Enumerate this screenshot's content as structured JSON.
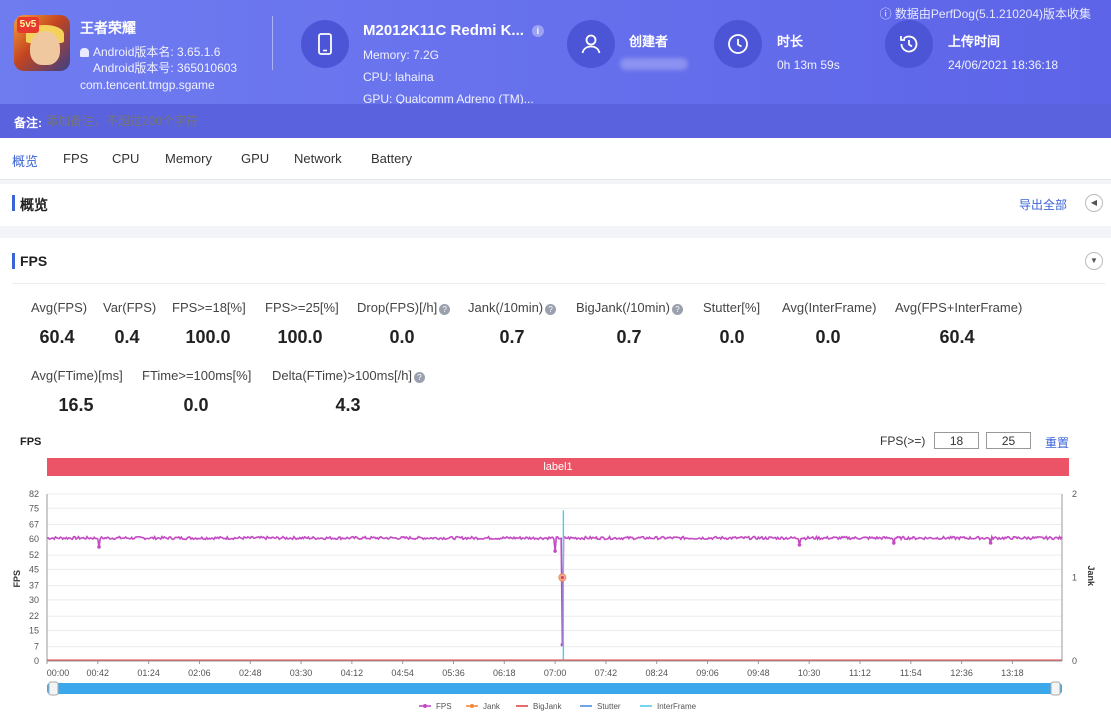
{
  "header": {
    "data_source_note": "数据由PerfDog(5.1.210204)版本收集",
    "app": {
      "name": "王者荣耀",
      "version_name": "Android版本名: 3.65.1.6",
      "version_code": "Android版本号: 365010603",
      "package": "com.tencent.tmgp.sgame",
      "icon_badge": "5v5"
    },
    "device": {
      "name": "M2012K11C Redmi K...",
      "memory": "Memory: 7.2G",
      "cpu": "CPU: lahaina",
      "gpu": "GPU: Qualcomm Adreno (TM)..."
    },
    "creator": {
      "label": "创建者"
    },
    "duration": {
      "label": "时长",
      "value": "0h 13m 59s"
    },
    "upload_time": {
      "label": "上传时间",
      "value": "24/06/2021 18:36:18"
    },
    "remark": {
      "label": "备注:",
      "placeholder": "添加备注，不超过200个字符"
    }
  },
  "tabs": [
    "概览",
    "FPS",
    "CPU",
    "Memory",
    "GPU",
    "Network",
    "Battery"
  ],
  "active_tab": 0,
  "overview": {
    "title": "概览",
    "export_label": "导出全部"
  },
  "fps_section": {
    "title": "FPS",
    "stats": [
      {
        "label": "Avg(FPS)",
        "value": "60.4",
        "help": false
      },
      {
        "label": "Var(FPS)",
        "value": "0.4",
        "help": false
      },
      {
        "label": "FPS>=18[%]",
        "value": "100.0",
        "help": false
      },
      {
        "label": "FPS>=25[%]",
        "value": "100.0",
        "help": false
      },
      {
        "label": "Drop(FPS)[/h]",
        "value": "0.0",
        "help": true
      },
      {
        "label": "Jank(/10min)",
        "value": "0.7",
        "help": true
      },
      {
        "label": "BigJank(/10min)",
        "value": "0.7",
        "help": true
      },
      {
        "label": "Stutter[%]",
        "value": "0.0",
        "help": false
      },
      {
        "label": "Avg(InterFrame)",
        "value": "0.0",
        "help": false
      },
      {
        "label": "Avg(FPS+InterFrame)",
        "value": "60.4",
        "help": false
      },
      {
        "label": "Avg(FTime)[ms]",
        "value": "16.5",
        "help": false
      },
      {
        "label": "FTime>=100ms[%]",
        "value": "0.0",
        "help": false
      },
      {
        "label": "Delta(FTime)>100ms[/h]",
        "value": "4.3",
        "help": true
      }
    ],
    "threshold_label": "FPS(>=)",
    "threshold_low": "18",
    "threshold_high": "25",
    "reset_label": "重置"
  },
  "colors": {
    "header": "#6f7cf0",
    "accent": "#3b63d8",
    "label_band": "#ea5466",
    "fps": "#c44bc4",
    "jank": "#f08a3c",
    "bigjank": "#e04848",
    "stutter": "#4a90e2",
    "interframe": "#56c8e8",
    "scrollbar": "#3aa8ea"
  },
  "chart_data": {
    "type": "line",
    "title": "FPS",
    "band_label": "label1",
    "ylabel": "FPS",
    "y2label": "Jank",
    "ylim": [
      0,
      82
    ],
    "y2lim": [
      0,
      2
    ],
    "yticks": [
      0,
      7,
      15,
      22,
      30,
      37,
      45,
      52,
      60,
      67,
      75,
      82
    ],
    "y2ticks": [
      0,
      1,
      2
    ],
    "xlim_seconds": [
      0,
      839
    ],
    "xticks": [
      "00:00",
      "00:42",
      "01:24",
      "02:06",
      "02:48",
      "03:30",
      "04:12",
      "04:54",
      "05:36",
      "06:18",
      "07:00",
      "07:42",
      "08:24",
      "09:06",
      "09:48",
      "10:30",
      "11:12",
      "11:54",
      "12:36",
      "13:18"
    ],
    "series": [
      {
        "name": "FPS",
        "baseline": 60.4,
        "dips": [
          {
            "t": 43,
            "v": 56
          },
          {
            "t": 420,
            "v": 54
          },
          {
            "t": 426,
            "v": 8
          },
          {
            "t": 622,
            "v": 57
          },
          {
            "t": 700,
            "v": 58
          },
          {
            "t": 780,
            "v": 58
          }
        ]
      },
      {
        "name": "Jank",
        "points": [
          {
            "t": 426,
            "v": 1
          }
        ]
      },
      {
        "name": "BigJank",
        "points": [
          {
            "t": 426,
            "v": 1
          }
        ]
      },
      {
        "name": "Stutter",
        "points": []
      },
      {
        "name": "InterFrame",
        "points": [
          {
            "t": 426,
            "v": 74
          }
        ]
      }
    ],
    "legend": [
      "FPS",
      "Jank",
      "BigJank",
      "Stutter",
      "InterFrame"
    ],
    "legend_position": "bottom"
  }
}
